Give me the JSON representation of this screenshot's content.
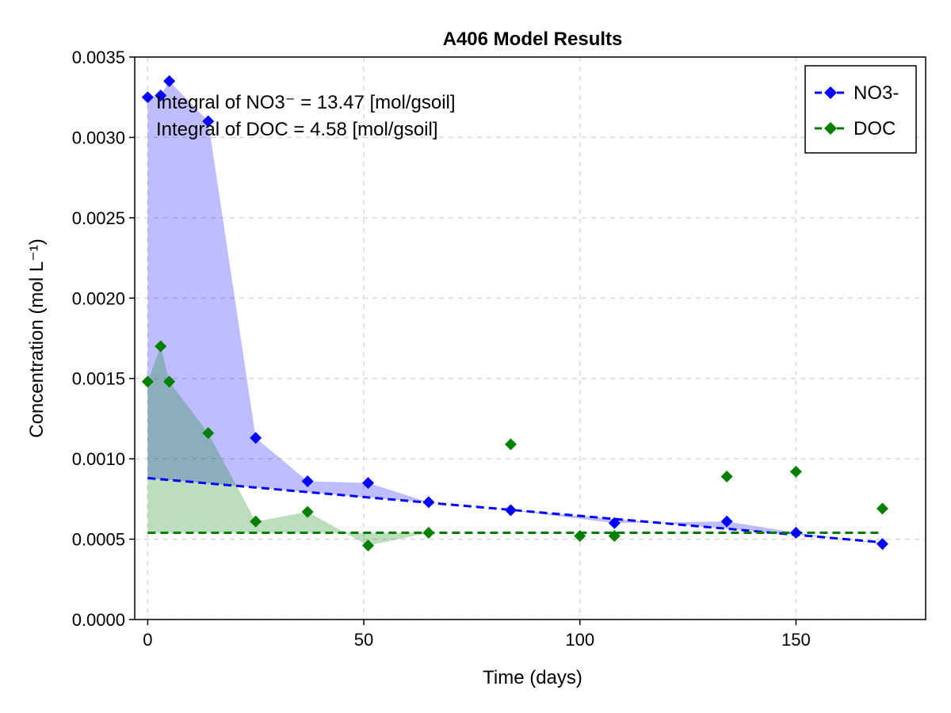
{
  "chart_data": {
    "type": "scatter",
    "title": "A406 Model Results",
    "xlabel": "Time (days)",
    "ylabel": "Concentration (mol L⁻¹)",
    "xlim": [
      -3,
      180
    ],
    "ylim": [
      0,
      0.0035
    ],
    "xticks": [
      0,
      50,
      100,
      150
    ],
    "xtick_labels": [
      "0",
      "50",
      "100",
      "150"
    ],
    "yticks": [
      0,
      0.0005,
      0.001,
      0.0015,
      0.002,
      0.0025,
      0.003,
      0.0035
    ],
    "ytick_labels": [
      "0.0000",
      "0.0005",
      "0.0010",
      "0.0015",
      "0.0020",
      "0.0025",
      "0.0030",
      "0.0035"
    ],
    "grid": true,
    "legend_position": "top-right",
    "annotations": [
      "Integral of NO3⁻ = 13.47 [mol/gsoil]",
      "Integral of DOC = 4.58 [mol/gsoil]"
    ],
    "series": [
      {
        "name": "NO3-",
        "color": "#0000ff",
        "fill_color": "#0000ff",
        "marker": "diamond",
        "x": [
          0,
          3,
          5,
          14,
          25,
          37,
          51,
          65,
          84,
          108,
          134,
          150,
          170
        ],
        "y": [
          0.00325,
          0.00326,
          0.00335,
          0.0031,
          0.00113,
          0.00086,
          0.00085,
          0.00073,
          0.00068,
          0.0006,
          0.00061,
          0.00054,
          0.00047
        ],
        "fit_line": {
          "x": [
            0,
            170
          ],
          "y": [
            0.00088,
            0.00048
          ]
        }
      },
      {
        "name": "DOC",
        "color": "#008000",
        "fill_color": "#008000",
        "marker": "diamond",
        "x": [
          0,
          3,
          5,
          14,
          25,
          37,
          51,
          65,
          84,
          100,
          108,
          134,
          150,
          170
        ],
        "y": [
          0.00148,
          0.0017,
          0.00148,
          0.00116,
          0.00061,
          0.00067,
          0.00046,
          0.00054,
          0.00109,
          0.00052,
          0.00052,
          0.00089,
          0.00092,
          0.00069
        ],
        "fill_x": [
          0,
          3,
          5,
          14,
          25,
          37,
          51,
          65
        ],
        "fill_y": [
          0.00148,
          0.0017,
          0.00148,
          0.00116,
          0.00061,
          0.00067,
          0.00046,
          0.00054
        ],
        "fit_line": {
          "x": [
            0,
            170
          ],
          "y": [
            0.00054,
            0.00054
          ]
        }
      }
    ]
  }
}
